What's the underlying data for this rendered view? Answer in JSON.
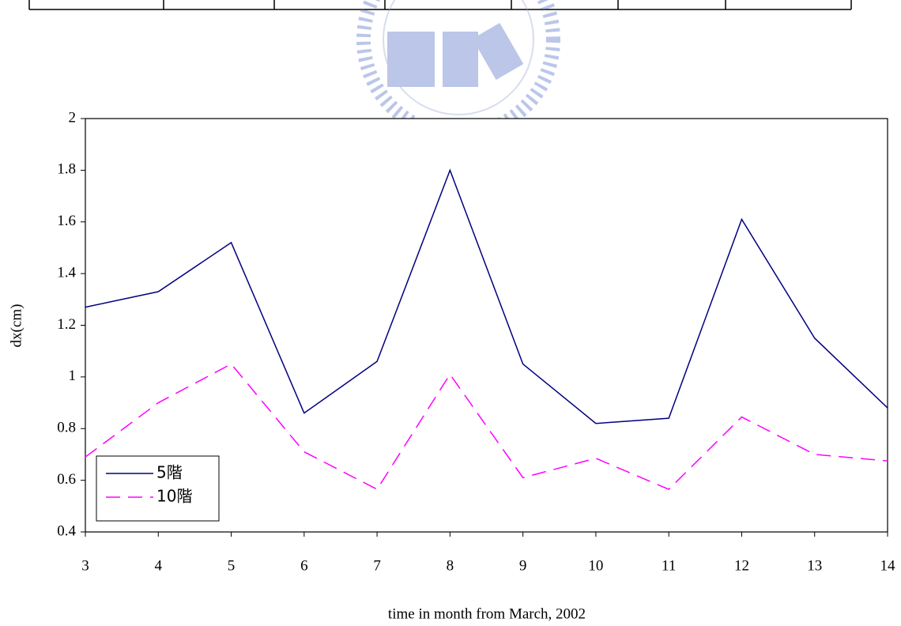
{
  "chart_data": {
    "type": "line",
    "x_label": "time in month from March, 2002",
    "y_label": "dx(cm)",
    "x": [
      3,
      4,
      5,
      6,
      7,
      8,
      9,
      10,
      11,
      12,
      13,
      14
    ],
    "series": [
      {
        "name": "5階",
        "color": "#000080",
        "linestyle": "solid",
        "values": [
          1.27,
          1.33,
          1.52,
          0.86,
          1.06,
          1.8,
          1.05,
          0.82,
          0.84,
          1.61,
          1.15,
          0.88
        ]
      },
      {
        "name": "10階",
        "color": "#ff00ff",
        "linestyle": "dashed",
        "values": [
          0.69,
          0.9,
          1.05,
          0.71,
          0.565,
          1.01,
          0.61,
          0.685,
          0.565,
          0.845,
          0.7,
          0.675
        ]
      }
    ],
    "xlim": [
      3,
      14
    ],
    "xticks": [
      3,
      4,
      5,
      6,
      7,
      8,
      9,
      10,
      11,
      12,
      13,
      14
    ],
    "ylim": [
      0.4,
      2
    ],
    "yticks": [
      0.4,
      0.6,
      0.8,
      1,
      1.2,
      1.4,
      1.6,
      1.8,
      2
    ],
    "grid": false,
    "legend": "lower left"
  }
}
